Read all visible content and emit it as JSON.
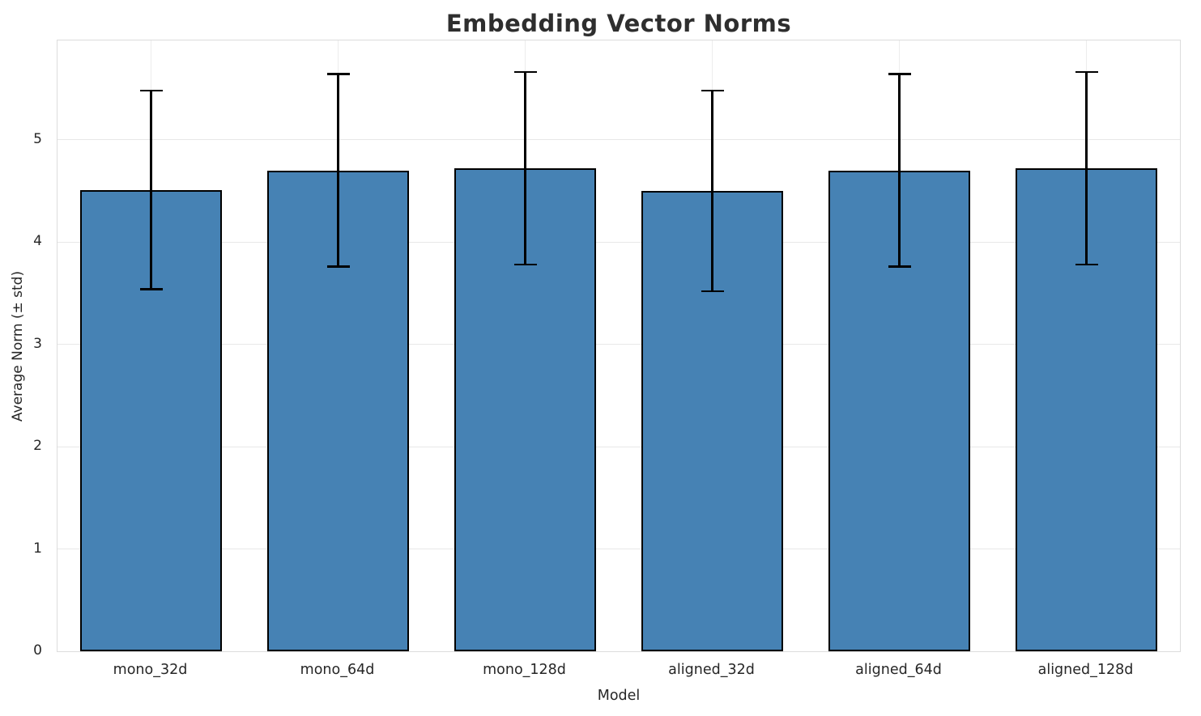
{
  "chart_data": {
    "type": "bar",
    "title": "Embedding Vector Norms",
    "xlabel": "Model",
    "ylabel": "Average Norm (± std)",
    "categories": [
      "mono_32d",
      "mono_64d",
      "mono_128d",
      "aligned_32d",
      "aligned_64d",
      "aligned_128d"
    ],
    "values": [
      4.51,
      4.7,
      4.72,
      4.5,
      4.7,
      4.72
    ],
    "errors": [
      0.97,
      0.94,
      0.94,
      0.98,
      0.94,
      0.94
    ],
    "yticks": [
      0,
      1,
      2,
      3,
      4,
      5
    ],
    "ylim": [
      0,
      5.97
    ],
    "grid": true,
    "legend_position": "none",
    "bar_color": "#4682b4",
    "bar_edge_color": "#000000",
    "error_color": "#000000",
    "gridline_color": "#e8e8e8",
    "text_color": "#262626",
    "title_color": "#2e2e2e"
  }
}
